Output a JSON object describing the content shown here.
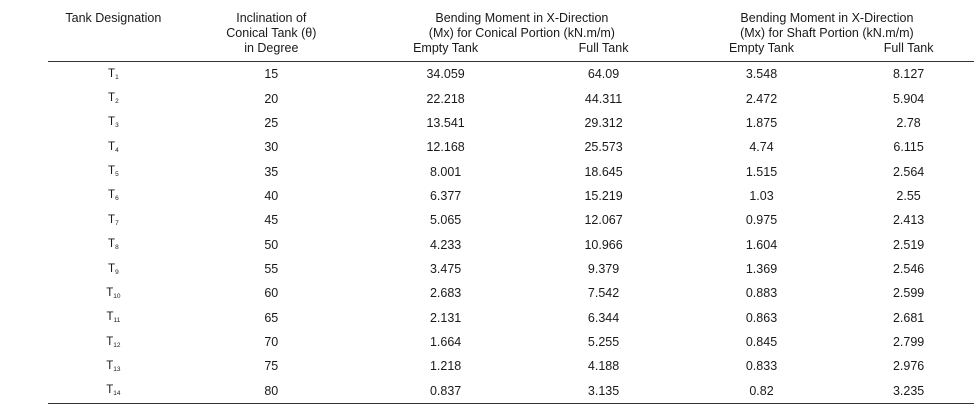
{
  "header": {
    "tank_designation": "Tank Designation",
    "inclination_line1": "Inclination of",
    "inclination_line2": "Conical Tank (θ)",
    "inclination_line3": "in Degree",
    "conical_line1": "Bending Moment in X-Direction",
    "conical_line2": "(Mx) for Conical Portion (kN.m/m)",
    "shaft_line1": "Bending Moment in X-Direction",
    "shaft_line2": "(Mx) for Shaft Portion (kN.m/m)",
    "empty_tank": "Empty Tank",
    "full_tank": "Full Tank"
  },
  "rows": [
    {
      "tank": "T",
      "sub": "1",
      "angle": "15",
      "con_empty": "34.059",
      "con_full": "64.09",
      "shaft_empty": "3.548",
      "shaft_full": "8.127"
    },
    {
      "tank": "T",
      "sub": "2",
      "angle": "20",
      "con_empty": "22.218",
      "con_full": "44.311",
      "shaft_empty": "2.472",
      "shaft_full": "5.904"
    },
    {
      "tank": "T",
      "sub": "3",
      "angle": "25",
      "con_empty": "13.541",
      "con_full": "29.312",
      "shaft_empty": "1.875",
      "shaft_full": "2.78"
    },
    {
      "tank": "T",
      "sub": "4",
      "angle": "30",
      "con_empty": "12.168",
      "con_full": "25.573",
      "shaft_empty": "4.74",
      "shaft_full": "6.115"
    },
    {
      "tank": "T",
      "sub": "5",
      "angle": "35",
      "con_empty": "8.001",
      "con_full": "18.645",
      "shaft_empty": "1.515",
      "shaft_full": "2.564"
    },
    {
      "tank": "T",
      "sub": "6",
      "angle": "40",
      "con_empty": "6.377",
      "con_full": "15.219",
      "shaft_empty": "1.03",
      "shaft_full": "2.55"
    },
    {
      "tank": "T",
      "sub": "7",
      "angle": "45",
      "con_empty": "5.065",
      "con_full": "12.067",
      "shaft_empty": "0.975",
      "shaft_full": "2.413"
    },
    {
      "tank": "T",
      "sub": "8",
      "angle": "50",
      "con_empty": "4.233",
      "con_full": "10.966",
      "shaft_empty": "1.604",
      "shaft_full": "2.519"
    },
    {
      "tank": "T",
      "sub": "9",
      "angle": "55",
      "con_empty": "3.475",
      "con_full": "9.379",
      "shaft_empty": "1.369",
      "shaft_full": "2.546"
    },
    {
      "tank": "T",
      "sub": "10",
      "angle": "60",
      "con_empty": "2.683",
      "con_full": "7.542",
      "shaft_empty": "0.883",
      "shaft_full": "2.599"
    },
    {
      "tank": "T",
      "sub": "11",
      "angle": "65",
      "con_empty": "2.131",
      "con_full": "6.344",
      "shaft_empty": "0.863",
      "shaft_full": "2.681"
    },
    {
      "tank": "T",
      "sub": "12",
      "angle": "70",
      "con_empty": "1.664",
      "con_full": "5.255",
      "shaft_empty": "0.845",
      "shaft_full": "2.799"
    },
    {
      "tank": "T",
      "sub": "13",
      "angle": "75",
      "con_empty": "1.218",
      "con_full": "4.188",
      "shaft_empty": "0.833",
      "shaft_full": "2.976"
    },
    {
      "tank": "T",
      "sub": "14",
      "angle": "80",
      "con_empty": "0.837",
      "con_full": "3.135",
      "shaft_empty": "0.82",
      "shaft_full": "3.235"
    }
  ]
}
